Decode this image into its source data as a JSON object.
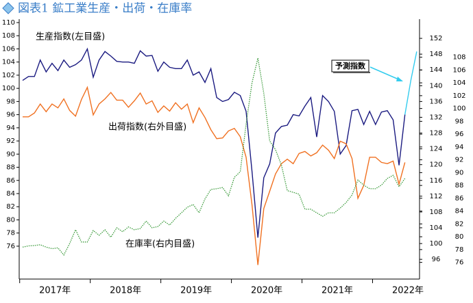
{
  "chart_data": {
    "type": "line",
    "title": "図表1 鉱工業生産・出荷・在庫率",
    "categories": [
      "2017年",
      null,
      null,
      null,
      null,
      null,
      null,
      null,
      null,
      null,
      null,
      null,
      "2018年",
      null,
      null,
      null,
      null,
      null,
      null,
      null,
      null,
      null,
      null,
      null,
      "2019年",
      null,
      null,
      null,
      null,
      null,
      null,
      null,
      null,
      null,
      null,
      null,
      "2020年",
      null,
      null,
      null,
      null,
      null,
      null,
      null,
      null,
      null,
      null,
      null,
      "2021年",
      null,
      null,
      null,
      null,
      null,
      null,
      null,
      null,
      null,
      null,
      null,
      "2022年",
      null,
      null,
      null,
      null,
      null,
      null,
      null
    ],
    "ylim": [
      71,
      110
    ],
    "yticks": [
      76,
      78,
      80,
      82,
      84,
      86,
      88,
      90,
      92,
      94,
      96,
      98,
      100,
      102,
      104,
      106,
      108,
      110
    ],
    "y2lim": [
      91,
      156
    ],
    "y2ticks": [
      96,
      100,
      104,
      108,
      112,
      116,
      120,
      124,
      128,
      132,
      136,
      140,
      144,
      148,
      152
    ],
    "y3lim": [
      73.4,
      113.4
    ],
    "y3ticks": [
      76,
      78,
      80,
      82,
      84,
      86,
      88,
      90,
      92,
      94,
      96,
      98,
      100,
      102,
      104,
      106,
      108
    ],
    "series": [
      {
        "name": "生産指数(左目盛)",
        "color": "#1a1a80",
        "style": "solid",
        "values": [
          101.2,
          101.8,
          101.8,
          104.3,
          102.5,
          103.8,
          102.7,
          104.3,
          103.2,
          103.6,
          104.3,
          106.0,
          101.7,
          104.3,
          105.6,
          104.9,
          104.1,
          104.0,
          104.0,
          103.8,
          105.7,
          104.9,
          105.0,
          102.6,
          104.0,
          103.2,
          103.0,
          103.0,
          104.3,
          102.0,
          102.5,
          100.9,
          103.0,
          98.6,
          98.0,
          98.3,
          99.4,
          98.9,
          96.5,
          87.4,
          77.3,
          86.4,
          88.5,
          93.2,
          94.2,
          94.4,
          96.0,
          95.8,
          97.3,
          98.6,
          92.6,
          98.9,
          98.0,
          96.5,
          90.0,
          91.3,
          96.6,
          96.8,
          94.5,
          96.5,
          94.5,
          96.4,
          96.6,
          95.2,
          88.3,
          96.0,
          null,
          null
        ]
      },
      {
        "name": "出荷指数(右外目盛)",
        "color": "#f07020",
        "style": "solid",
        "axis": "y3",
        "values": [
          98.7,
          98.7,
          99.3,
          100.7,
          99.5,
          100.7,
          100.1,
          101.5,
          99.7,
          98.8,
          101.4,
          103.3,
          99.0,
          100.7,
          101.5,
          102.5,
          101.3,
          101.3,
          100.2,
          101.2,
          102.4,
          100.7,
          101.2,
          99.4,
          100.4,
          99.6,
          100.9,
          99.9,
          100.7,
          97.8,
          100.1,
          98.6,
          96.7,
          95.3,
          95.4,
          96.5,
          96.9,
          95.6,
          92.4,
          85.0,
          75.6,
          84.4,
          87.1,
          89.8,
          91.4,
          92.1,
          91.4,
          93.0,
          93.3,
          92.6,
          93.1,
          94.3,
          93.5,
          92.2,
          94.9,
          94.5,
          92.2,
          86.0,
          88.0,
          92.4,
          92.4,
          91.6,
          91.4,
          91.8,
          88.2,
          91.6,
          null,
          null
        ]
      },
      {
        "name": "在庫率(右内目盛)",
        "color": "#3a9a3a",
        "style": "dotted",
        "axis": "y2",
        "values": [
          99.1,
          99.4,
          99.5,
          99.7,
          99.1,
          98.7,
          98.9,
          97.1,
          100.0,
          103.5,
          100.4,
          100.4,
          103.3,
          102.1,
          103.5,
          101.6,
          104.0,
          103.0,
          104.2,
          103.5,
          103.8,
          105.7,
          104.0,
          104.3,
          105.7,
          104.7,
          106.4,
          107.8,
          109.2,
          109.9,
          107.8,
          111.3,
          113.7,
          113.9,
          114.2,
          112.1,
          116.8,
          118.2,
          130.3,
          140.7,
          147.0,
          138.1,
          126.0,
          123.8,
          119.9,
          113.4,
          113.0,
          112.5,
          108.7,
          108.7,
          107.8,
          106.9,
          107.8,
          107.8,
          109.0,
          110.4,
          112.3,
          116.1,
          114.8,
          113.9,
          113.9,
          114.8,
          116.5,
          117.3,
          114.4,
          116.5,
          null,
          null
        ]
      },
      {
        "name": "予測指数",
        "color": "#33ccee",
        "style": "solid",
        "values": [
          null,
          null,
          null,
          null,
          null,
          null,
          null,
          null,
          null,
          null,
          null,
          null,
          null,
          null,
          null,
          null,
          null,
          null,
          null,
          null,
          null,
          null,
          null,
          null,
          null,
          null,
          null,
          null,
          null,
          null,
          null,
          null,
          null,
          null,
          null,
          null,
          null,
          null,
          null,
          null,
          null,
          null,
          null,
          null,
          null,
          null,
          null,
          null,
          null,
          null,
          null,
          null,
          null,
          null,
          null,
          null,
          null,
          null,
          null,
          null,
          null,
          null,
          null,
          null,
          null,
          96.0,
          101.2,
          105.6
        ]
      }
    ]
  }
}
